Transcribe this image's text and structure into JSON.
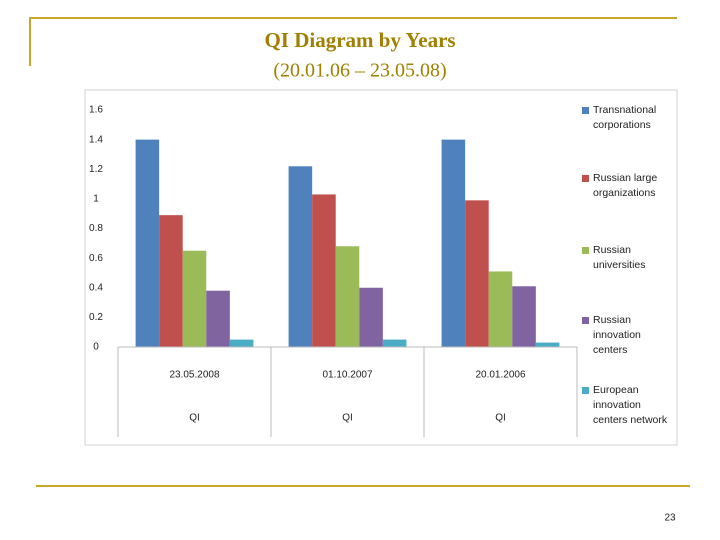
{
  "chart_data": {
    "type": "bar",
    "title": "QI Diagram by Years",
    "subtitle": "(20.01.06 – 23.05.08)",
    "categories": [
      "23.05.2008",
      "01.10.2007",
      "20.01.2006"
    ],
    "category_groups": [
      "QI",
      "QI",
      "QI"
    ],
    "series": [
      {
        "name": "Transnational corporations",
        "color": "#4f81bd",
        "values": [
          1.4,
          1.22,
          1.4
        ]
      },
      {
        "name": "Russian large organizations",
        "color": "#c0504d",
        "values": [
          0.89,
          1.03,
          0.99
        ]
      },
      {
        "name": "Russian universities",
        "color": "#9bbb59",
        "values": [
          0.65,
          0.68,
          0.51
        ]
      },
      {
        "name": "Russian innovation centers",
        "color": "#8064a2",
        "values": [
          0.38,
          0.4,
          0.41
        ]
      },
      {
        "name": "European innovation centers network",
        "color": "#4bacc6",
        "values": [
          0.05,
          0.05,
          0.03
        ]
      }
    ],
    "ylim": [
      0,
      1.6
    ],
    "yticks": [
      0,
      0.2,
      0.4,
      0.6,
      0.8,
      1,
      1.2,
      1.4,
      1.6
    ],
    "grid": false
  },
  "page_number": "23"
}
